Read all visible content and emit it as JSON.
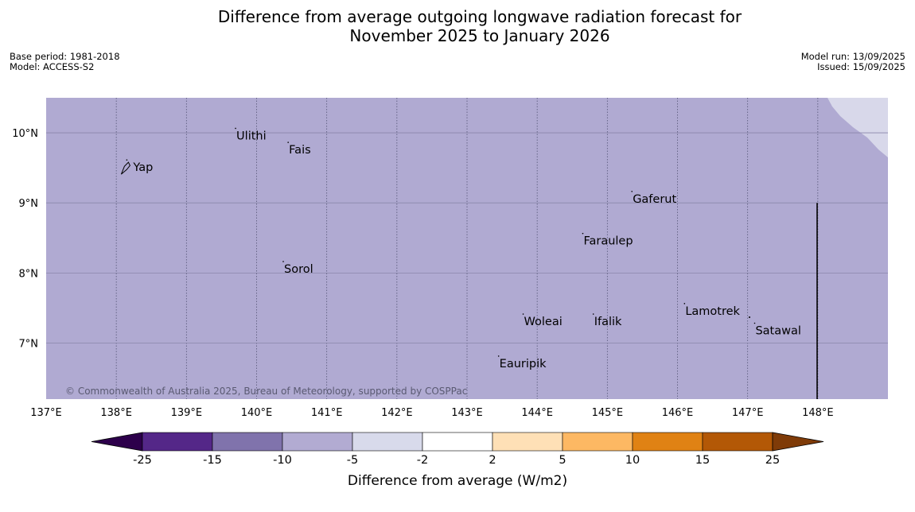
{
  "title_line1": "Difference from average outgoing longwave radiation forecast for",
  "title_line2": "November 2025 to January 2026",
  "meta_left": [
    "Base period: 1981-2018",
    "Model: ACCESS-S2"
  ],
  "meta_right": [
    "Model run: 13/09/2025",
    "Issued: 15/09/2025"
  ],
  "copyright": "© Commonwealth of Australia 2025, Bureau of Meteorology, supported by COSPPac",
  "map": {
    "lon_range": [
      137,
      149
    ],
    "lat_range": [
      6.2,
      10.5
    ],
    "lon_ticks": [
      "137°E",
      "138°E",
      "139°E",
      "140°E",
      "141°E",
      "142°E",
      "143°E",
      "144°E",
      "145°E",
      "146°E",
      "147°E",
      "148°E"
    ],
    "lat_ticks": [
      "10°N",
      "9°N",
      "8°N",
      "7°N"
    ],
    "fill_color": "#b0aad2",
    "corner_fill_color": "#d8d8ea",
    "places": [
      {
        "name": "Yap",
        "lon": 138.15,
        "lat": 9.5
      },
      {
        "name": "Ulithi",
        "lon": 139.7,
        "lat": 9.95
      },
      {
        "name": "Fais",
        "lon": 140.45,
        "lat": 9.75
      },
      {
        "name": "Gaferut",
        "lon": 145.35,
        "lat": 9.05
      },
      {
        "name": "Faraulep",
        "lon": 144.65,
        "lat": 8.45
      },
      {
        "name": "Sorol",
        "lon": 140.38,
        "lat": 8.05
      },
      {
        "name": "Woleai",
        "lon": 143.8,
        "lat": 7.3
      },
      {
        "name": "Ifalik",
        "lon": 144.8,
        "lat": 7.3
      },
      {
        "name": "Lamotrek",
        "lon": 146.1,
        "lat": 7.45
      },
      {
        "name": "Satawal",
        "lon": 147.1,
        "lat": 7.17
      },
      {
        "name": "Eauripik",
        "lon": 143.45,
        "lat": 6.7
      }
    ]
  },
  "colorbar": {
    "label": "Difference from average (W/m2)",
    "tick_labels": [
      "-25",
      "-15",
      "-10",
      "-5",
      "-2",
      "2",
      "5",
      "10",
      "15",
      "25"
    ],
    "colors": [
      "#2d004b",
      "#542788",
      "#8073ac",
      "#b2abd2",
      "#d8daeb",
      "#ffffff",
      "#fee0b6",
      "#fdb863",
      "#e08214",
      "#b35806",
      "#7f3b08"
    ]
  }
}
